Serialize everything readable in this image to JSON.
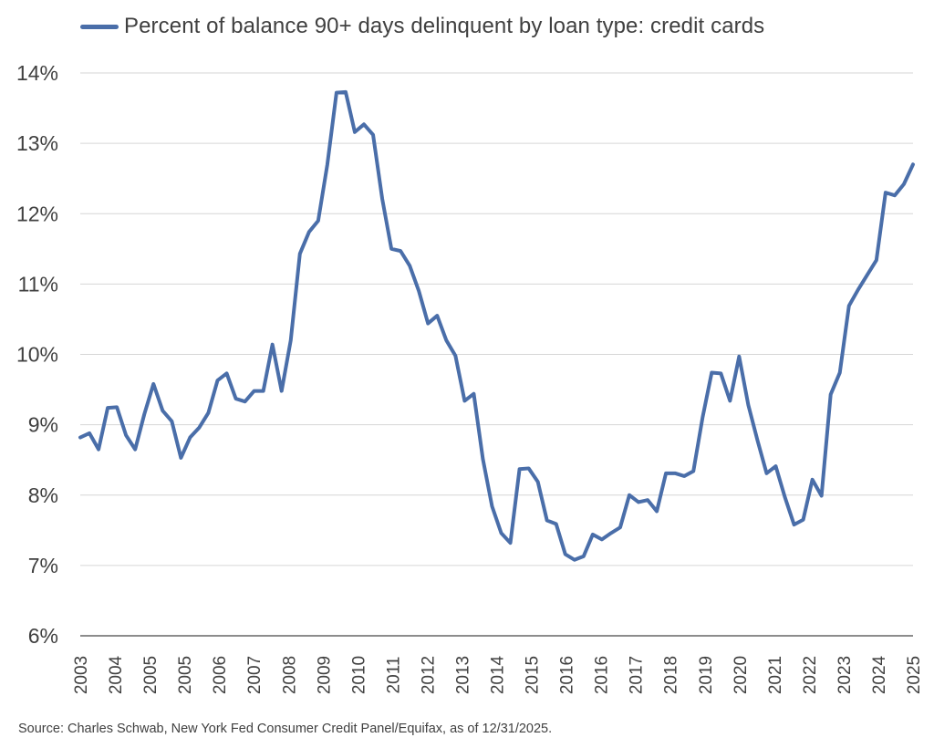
{
  "chart_data": {
    "type": "line",
    "title": "",
    "xlabel": "",
    "ylabel": "",
    "ylim": [
      6,
      14
    ],
    "y_ticks": [
      "6%",
      "7%",
      "8%",
      "9%",
      "10%",
      "11%",
      "12%",
      "13%",
      "14%"
    ],
    "x_ticks": [
      "2003",
      "2004",
      "2005",
      "2005",
      "2006",
      "2007",
      "2008",
      "2009",
      "2010",
      "2011",
      "2012",
      "2013",
      "2014",
      "2015",
      "2016",
      "2016",
      "2017",
      "2018",
      "2019",
      "2020",
      "2021",
      "2022",
      "2023",
      "2024",
      "2025"
    ],
    "grid": true,
    "legend": "top-left",
    "series": [
      {
        "name": "Percent of balance 90+ days delinquent by loan type: credit cards",
        "color": "#4a6ea9",
        "x": [
          "2003Q1",
          "2003Q2",
          "2003Q3",
          "2003Q4",
          "2004Q1",
          "2004Q2",
          "2004Q3",
          "2004Q4",
          "2005Q1",
          "2005Q2",
          "2005Q3",
          "2005Q4",
          "2006Q1",
          "2006Q2",
          "2006Q3",
          "2006Q4",
          "2007Q1",
          "2007Q2",
          "2007Q3",
          "2007Q4",
          "2008Q1",
          "2008Q2",
          "2008Q3",
          "2008Q4",
          "2009Q1",
          "2009Q2",
          "2009Q3",
          "2009Q4",
          "2010Q1",
          "2010Q2",
          "2010Q3",
          "2010Q4",
          "2011Q1",
          "2011Q2",
          "2011Q3",
          "2011Q4",
          "2012Q1",
          "2012Q2",
          "2012Q3",
          "2012Q4",
          "2013Q1",
          "2013Q2",
          "2013Q3",
          "2013Q4",
          "2014Q1",
          "2014Q2",
          "2014Q3",
          "2014Q4",
          "2015Q1",
          "2015Q2",
          "2015Q3",
          "2015Q4",
          "2016Q1",
          "2016Q2",
          "2016Q3",
          "2016Q4",
          "2017Q1",
          "2017Q2",
          "2017Q3",
          "2017Q4",
          "2018Q1",
          "2018Q2",
          "2018Q3",
          "2018Q4",
          "2019Q1",
          "2019Q2",
          "2019Q3",
          "2019Q4",
          "2020Q1",
          "2020Q2",
          "2020Q3",
          "2020Q4",
          "2021Q1",
          "2021Q2",
          "2021Q3",
          "2021Q4",
          "2022Q1",
          "2022Q2",
          "2022Q3",
          "2022Q4",
          "2023Q1",
          "2023Q2",
          "2023Q3",
          "2023Q4",
          "2024Q1",
          "2024Q2",
          "2024Q3",
          "2024Q4",
          "2025Q1",
          "2025Q2",
          "2025Q3",
          "2025Q4"
        ],
        "values": [
          8.82,
          8.88,
          8.65,
          9.24,
          9.25,
          8.85,
          8.65,
          9.15,
          9.58,
          9.2,
          9.05,
          8.53,
          8.82,
          8.96,
          9.17,
          9.63,
          9.73,
          9.37,
          9.33,
          9.48,
          9.48,
          10.14,
          9.48,
          10.2,
          11.43,
          11.74,
          11.9,
          12.7,
          13.72,
          13.73,
          13.16,
          13.27,
          13.12,
          12.21,
          11.5,
          11.47,
          11.26,
          10.9,
          10.44,
          10.55,
          10.2,
          9.98,
          9.34,
          9.44,
          8.51,
          7.84,
          7.46,
          7.32,
          8.37,
          8.38,
          8.19,
          7.64,
          7.59,
          7.16,
          7.08,
          7.13,
          7.44,
          7.37,
          7.46,
          7.54,
          8.0,
          7.9,
          7.93,
          7.77,
          8.31,
          8.31,
          8.27,
          8.34,
          9.1,
          9.74,
          9.73,
          9.34,
          9.97,
          9.28,
          8.78,
          8.31,
          8.41,
          7.97,
          7.58,
          7.65,
          8.22,
          7.99,
          9.43,
          9.74,
          10.69,
          10.92,
          11.13,
          11.34,
          12.3,
          12.26,
          12.42,
          12.7
        ]
      }
    ],
    "source": "Source: Charles Schwab, New York Fed Consumer Credit Panel/Equifax, as of 12/31/2025."
  }
}
